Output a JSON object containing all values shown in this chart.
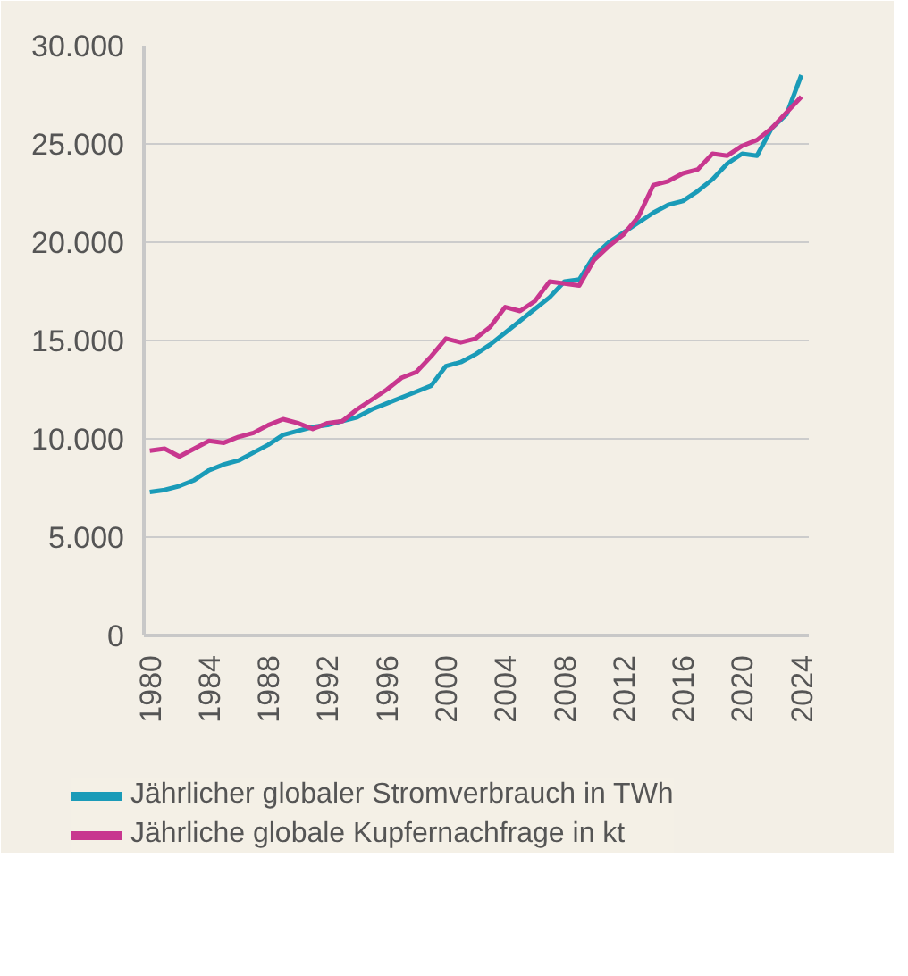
{
  "chart_data": {
    "type": "line",
    "x": [
      1980,
      1981,
      1982,
      1983,
      1984,
      1985,
      1986,
      1987,
      1988,
      1989,
      1990,
      1991,
      1992,
      1993,
      1994,
      1995,
      1996,
      1997,
      1998,
      1999,
      2000,
      2001,
      2002,
      2003,
      2004,
      2005,
      2006,
      2007,
      2008,
      2009,
      2010,
      2011,
      2012,
      2013,
      2014,
      2015,
      2016,
      2017,
      2018,
      2019,
      2020,
      2021,
      2022,
      2023,
      2024
    ],
    "series": [
      {
        "name": "Jährlicher globaler Stromverbrauch in TWh",
        "color": "#1a9bb8",
        "values": [
          7300,
          7400,
          7600,
          7900,
          8400,
          8700,
          8900,
          9300,
          9700,
          10200,
          10400,
          10600,
          10700,
          10900,
          11100,
          11500,
          11800,
          12100,
          12400,
          12700,
          13700,
          13900,
          14300,
          14800,
          15400,
          16000,
          16600,
          17200,
          18000,
          18100,
          19300,
          20000,
          20500,
          21000,
          21500,
          21900,
          22100,
          22600,
          23200,
          24000,
          24500,
          24400,
          25800,
          26500,
          28500
        ]
      },
      {
        "name": "Jährliche globale Kupfernachfrage in kt",
        "color": "#c8378f",
        "values": [
          9400,
          9500,
          9100,
          9500,
          9900,
          9800,
          10100,
          10300,
          10700,
          11000,
          10800,
          10500,
          10800,
          10900,
          11500,
          12000,
          12500,
          13100,
          13400,
          14200,
          15100,
          14900,
          15100,
          15700,
          16700,
          16500,
          17000,
          18000,
          17900,
          17800,
          19100,
          19800,
          20400,
          21300,
          22900,
          23100,
          23500,
          23700,
          24500,
          24400,
          24900,
          25200,
          25800,
          26600,
          27400
        ]
      }
    ],
    "xlim": [
      1979.6,
      2024.5
    ],
    "xticks": [
      1980,
      1984,
      1988,
      1992,
      1996,
      2000,
      2004,
      2008,
      2012,
      2016,
      2020,
      2024
    ],
    "ylim": [
      0,
      30000
    ],
    "yticks": [
      {
        "value": 0,
        "label": "0"
      },
      {
        "value": 5000,
        "label": "5.000"
      },
      {
        "value": 10000,
        "label": "10.000"
      },
      {
        "value": 15000,
        "label": "15.000"
      },
      {
        "value": 20000,
        "label": "20.000"
      },
      {
        "value": 25000,
        "label": "25.000"
      },
      {
        "value": 30000,
        "label": "30.000"
      }
    ],
    "grid": "y",
    "legend": "bottom",
    "marker": "none",
    "line_style": "solid"
  }
}
